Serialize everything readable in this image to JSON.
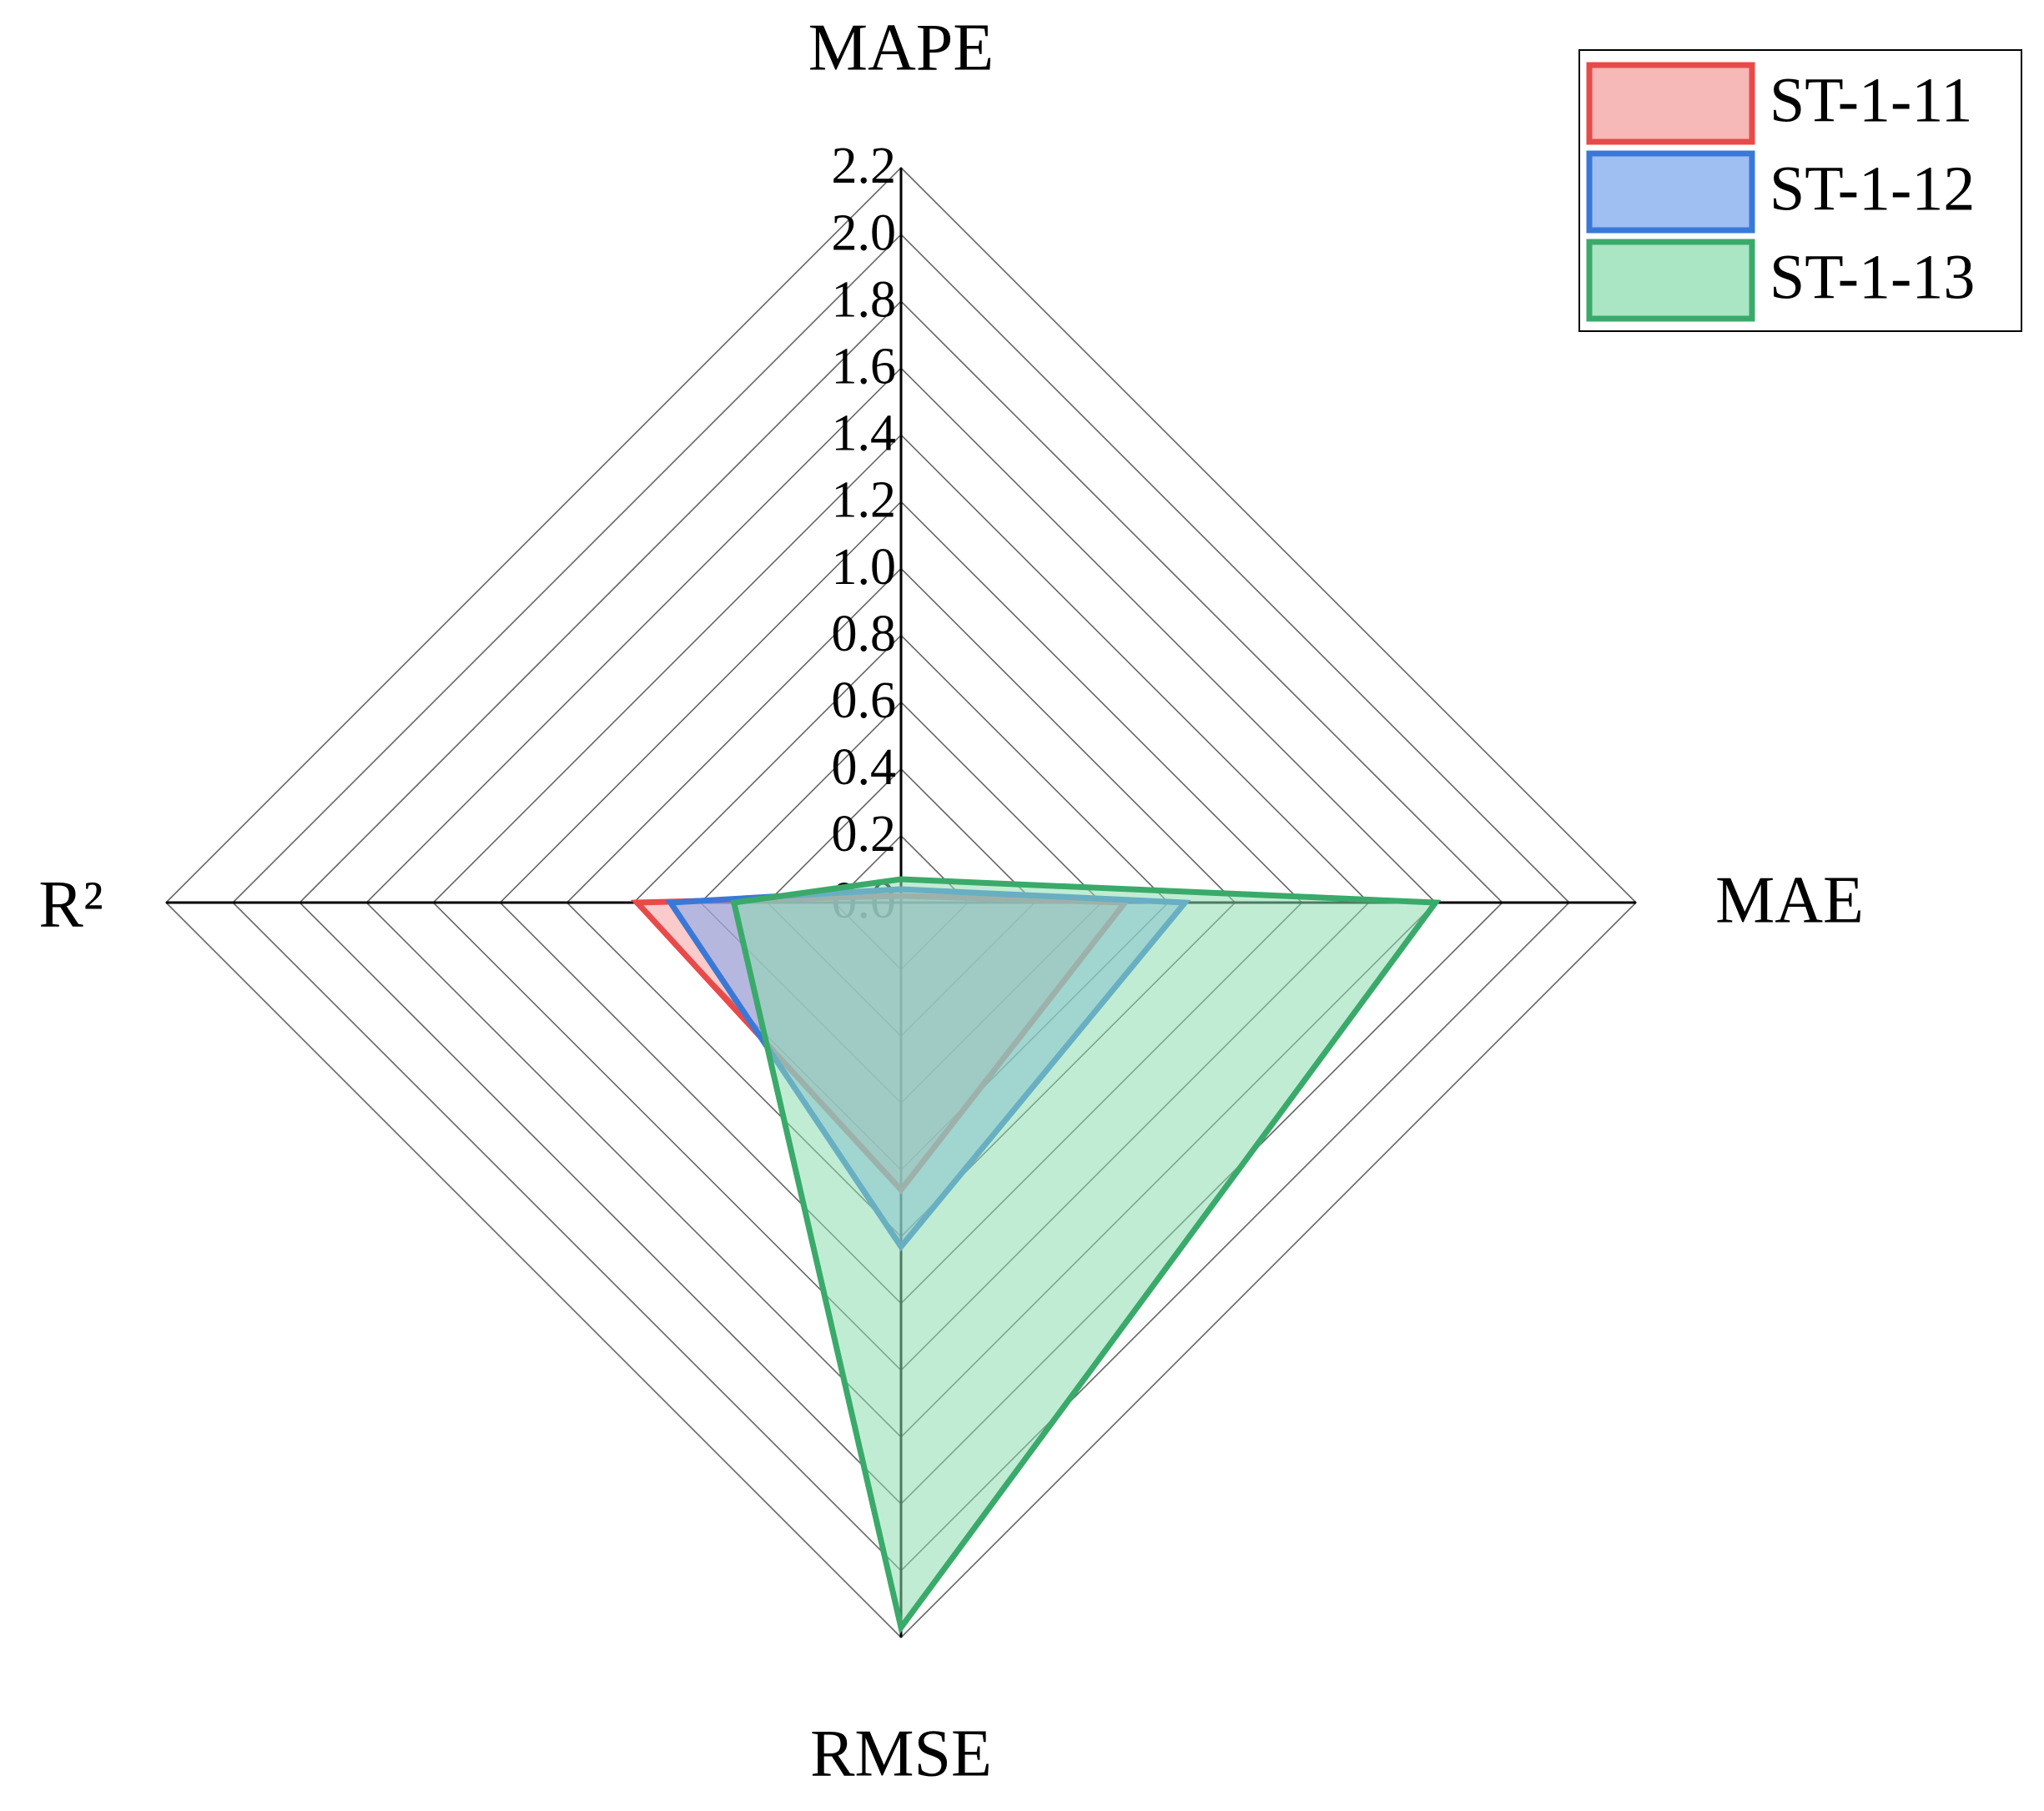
{
  "chart_data": {
    "type": "radar",
    "categories": [
      "MAPE",
      "MAE",
      "RMSE",
      "R²"
    ],
    "series": [
      {
        "name": "ST-1-11",
        "color": "#e84a4a",
        "fill": "#f4a0a0",
        "values": [
          0.02,
          0.67,
          0.86,
          0.79
        ]
      },
      {
        "name": "ST-1-12",
        "color": "#3a78d8",
        "fill": "#7fa8ee",
        "values": [
          0.04,
          0.85,
          1.03,
          0.69
        ]
      },
      {
        "name": "ST-1-13",
        "color": "#3aaa6a",
        "fill": "#8edcb0",
        "values": [
          0.07,
          1.6,
          2.17,
          0.5
        ]
      }
    ],
    "ylim": [
      0,
      2.2
    ],
    "yticks": [
      {
        "value": 0,
        "label": "0.0"
      },
      0.2,
      0.4,
      0.6,
      0.8,
      {
        "value": 1,
        "label": "1.0"
      },
      1.2,
      1.4,
      1.6,
      1.8,
      {
        "value": 2,
        "label": "2.0"
      },
      2.2
    ],
    "grid": true,
    "legend": "upper right"
  }
}
